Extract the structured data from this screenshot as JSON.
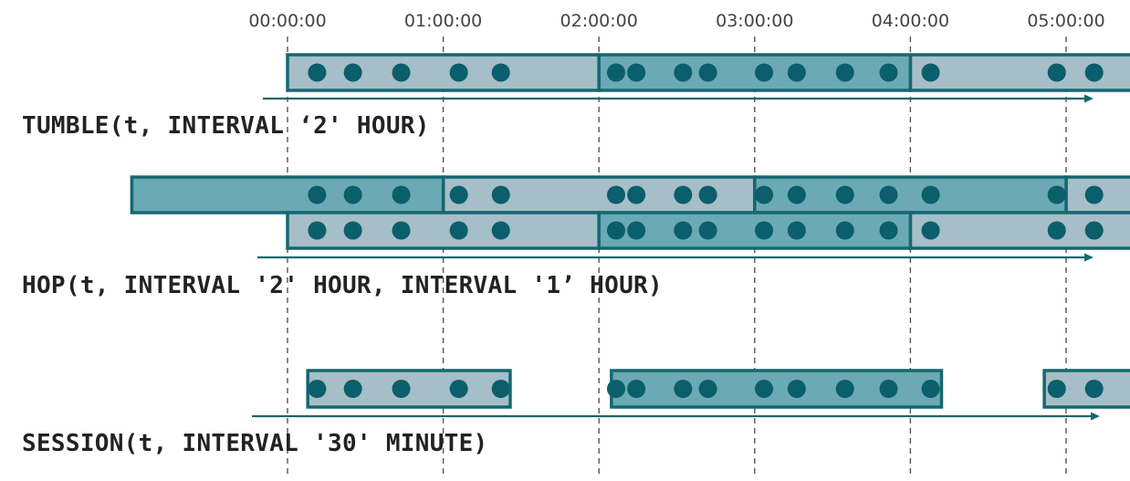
{
  "time_axis": {
    "ticks": [
      "00:00:00",
      "01:00:00",
      "02:00:00",
      "03:00:00",
      "04:00:00",
      "05:00:00"
    ]
  },
  "colors": {
    "window_light": "#a6bec7",
    "window_dark": "#6ba9b5",
    "window_border": "#156770",
    "event": "#0b5e6b",
    "axis_arrow": "#156770"
  },
  "events_hours": [
    0.19,
    0.42,
    0.73,
    1.1,
    1.37,
    2.11,
    2.24,
    2.54,
    2.7,
    3.06,
    3.27,
    3.58,
    3.86,
    4.13,
    4.94,
    5.18
  ],
  "panels": [
    {
      "id": "tumble",
      "caption": "TUMBLE(t, INTERVAL ‘2' HOUR)",
      "rows": [
        {
          "windows": [
            {
              "start": 0,
              "end": 2,
              "shade": "light"
            },
            {
              "start": 2,
              "end": 4,
              "shade": "dark"
            },
            {
              "start": 4,
              "end": 6,
              "shade": "light"
            }
          ]
        }
      ]
    },
    {
      "id": "hop",
      "caption": "HOP(t, INTERVAL '2' HOUR, INTERVAL '1’ HOUR)",
      "rows": [
        {
          "windows": [
            {
              "start": -1,
              "end": 1,
              "shade": "dark"
            },
            {
              "start": 1,
              "end": 3,
              "shade": "light"
            },
            {
              "start": 3,
              "end": 5,
              "shade": "dark"
            },
            {
              "start": 5,
              "end": 7,
              "shade": "light"
            }
          ]
        },
        {
          "windows": [
            {
              "start": 0,
              "end": 2,
              "shade": "light"
            },
            {
              "start": 2,
              "end": 4,
              "shade": "dark"
            },
            {
              "start": 4,
              "end": 6,
              "shade": "light"
            }
          ]
        }
      ]
    },
    {
      "id": "session",
      "caption": "SESSION(t, INTERVAL '30' MINUTE)",
      "rows": [
        {
          "windows": [
            {
              "start": 0.13,
              "end": 1.43,
              "shade": "light"
            },
            {
              "start": 2.08,
              "end": 4.2,
              "shade": "dark"
            },
            {
              "start": 4.86,
              "end": 6,
              "shade": "light"
            }
          ]
        }
      ]
    }
  ]
}
